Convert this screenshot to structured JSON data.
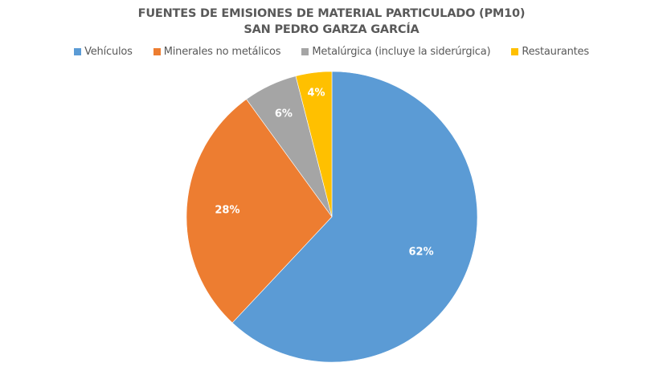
{
  "chart_data": {
    "type": "pie",
    "title": "FUENTES DE EMISIONES DE MATERIAL PARTICULADO (PM10)",
    "subtitle": "SAN PEDRO GARZA GARCÍA",
    "categories": [
      "Vehículos",
      "Minerales no metálicos",
      "Metalúrgica (incluye la siderúrgica)",
      "Restaurantes"
    ],
    "values": [
      62,
      28,
      6,
      4
    ],
    "labels": [
      "62%",
      "28%",
      "6%",
      "4%"
    ],
    "colors": [
      "#5B9BD5",
      "#ED7D31",
      "#A5A5A5",
      "#FFC000"
    ],
    "legend_position": "top",
    "start_angle_deg": 0,
    "direction": "clockwise"
  },
  "title": {
    "line1": "FUENTES DE EMISIONES DE MATERIAL PARTICULADO (PM10)",
    "line2": "SAN PEDRO GARZA GARCÍA"
  },
  "legend": {
    "items": [
      {
        "label": "Vehículos",
        "color": "#5B9BD5"
      },
      {
        "label": "Minerales no metálicos",
        "color": "#ED7D31"
      },
      {
        "label": "Metalúrgica (incluye la siderúrgica)",
        "color": "#A5A5A5"
      },
      {
        "label": "Restaurantes",
        "color": "#FFC000"
      }
    ]
  }
}
